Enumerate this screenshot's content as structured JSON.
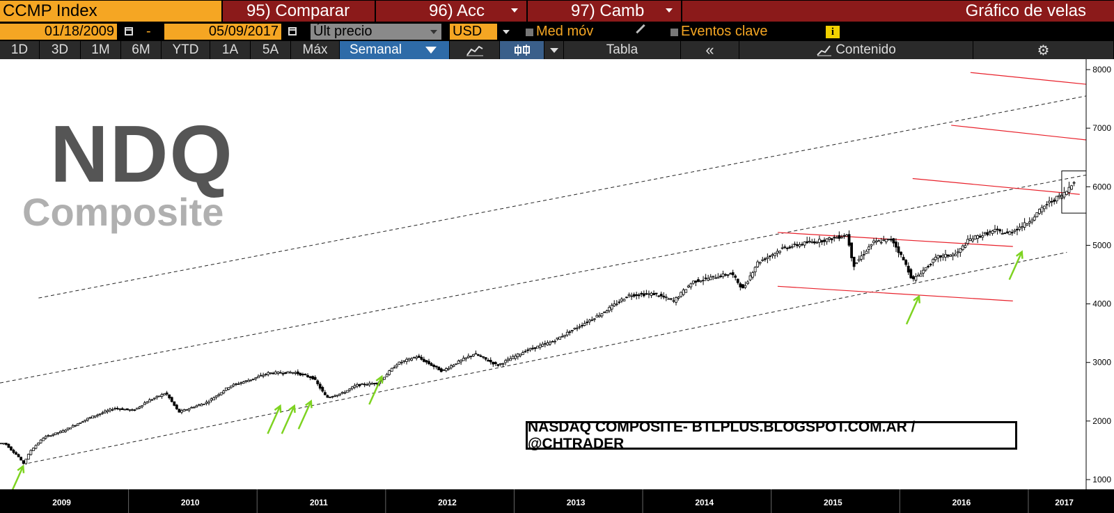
{
  "header": {
    "ticker": "CCMP Index",
    "compare": "95) Comparar",
    "actions": "96) Acc",
    "change": "97) Camb",
    "chart_type_title": "Gráfico de velas"
  },
  "toolbar": {
    "start_date": "01/18/2009",
    "separator": "-",
    "end_date": "05/09/2017",
    "price_field": "Últ precio",
    "currency": "USD",
    "moving_avg": "Med móv",
    "key_events": "Eventos clave",
    "info": "i"
  },
  "range_tabs": [
    "1D",
    "3D",
    "1M",
    "6M",
    "YTD",
    "1A",
    "5A",
    "Máx"
  ],
  "view": {
    "frequency": "Semanal",
    "table": "Tabla",
    "collapse": "«",
    "content": "Contenido"
  },
  "watermark": {
    "line1": "NDQ",
    "line2": "Composite"
  },
  "credit": "NASDAQ COMPOSITE- BTLPLUS.BLOGSPOT.COM.AR / @CHTRADER",
  "colors": {
    "orange": "#f5a623",
    "maroon": "#8b1a1a",
    "blue": "#2e6ba8",
    "trend_red": "#e8202a",
    "arrow_green": "#7ed321"
  },
  "chart_data": {
    "type": "line",
    "subtype": "candlestick-weekly",
    "title": "",
    "xlabel": "",
    "ylabel": "",
    "ylim": [
      1000,
      8200
    ],
    "y_ticks": [
      1000,
      2000,
      3000,
      4000,
      5000,
      6000,
      7000,
      8000
    ],
    "x_ticks": [
      "2009",
      "2010",
      "2011",
      "2012",
      "2013",
      "2014",
      "2015",
      "2016",
      "2017"
    ],
    "x_range": [
      2009.0,
      2017.45
    ],
    "grid": false,
    "series": [
      {
        "x": [
          2009.05,
          2009.1,
          2009.15,
          2009.19,
          2009.25,
          2009.35,
          2009.5,
          2009.7,
          2009.9,
          2010.05,
          2010.15,
          2010.3,
          2010.4,
          2010.5,
          2010.62,
          2010.8,
          2010.95,
          2011.1,
          2011.3,
          2011.45,
          2011.55,
          2011.68,
          2011.78,
          2011.95,
          2012.1,
          2012.25,
          2012.45,
          2012.55,
          2012.7,
          2012.88,
          2013.1,
          2013.3,
          2013.5,
          2013.7,
          2013.9,
          2014.1,
          2014.25,
          2014.4,
          2014.55,
          2014.7,
          2014.79,
          2014.9,
          2015.1,
          2015.3,
          2015.45,
          2015.6,
          2015.65,
          2015.8,
          2015.95,
          2016.05,
          2016.11,
          2016.3,
          2016.45,
          2016.55,
          2016.75,
          2016.85,
          2017.0,
          2017.15,
          2017.3,
          2017.36
        ],
        "y": [
          1620,
          1500,
          1400,
          1268,
          1500,
          1720,
          1830,
          2050,
          2220,
          2180,
          2330,
          2480,
          2150,
          2230,
          2320,
          2600,
          2700,
          2820,
          2830,
          2730,
          2400,
          2480,
          2610,
          2650,
          2980,
          3100,
          2850,
          2980,
          3150,
          2950,
          3200,
          3350,
          3600,
          3850,
          4150,
          4170,
          4050,
          4380,
          4450,
          4520,
          4250,
          4700,
          4950,
          5050,
          5100,
          5180,
          4650,
          5050,
          5100,
          4700,
          4400,
          4800,
          4850,
          5100,
          5250,
          5200,
          5380,
          5700,
          5900,
          6100
        ]
      }
    ],
    "trendlines_dashed": [
      {
        "from": [
          2009.3,
          4100
        ],
        "to": [
          2017.45,
          7550
        ]
      },
      {
        "from": [
          2009.0,
          2650
        ],
        "to": [
          2017.45,
          6200
        ]
      },
      {
        "from": [
          2009.22,
          1280
        ],
        "to": [
          2017.3,
          4880
        ]
      }
    ],
    "resistance_lines_red": [
      {
        "from": [
          2016.55,
          7950
        ],
        "to": [
          2017.45,
          7750
        ]
      },
      {
        "from": [
          2016.4,
          7050
        ],
        "to": [
          2017.45,
          6800
        ]
      },
      {
        "from": [
          2016.1,
          6140
        ],
        "to": [
          2017.4,
          5870
        ]
      },
      {
        "from": [
          2015.05,
          5220
        ],
        "to": [
          2016.88,
          4980
        ]
      },
      {
        "from": [
          2015.05,
          4300
        ],
        "to": [
          2016.88,
          4050
        ]
      }
    ],
    "support_arrows": [
      {
        "x": 2009.18,
        "y": 1300
      },
      {
        "x": 2011.18,
        "y": 2330
      },
      {
        "x": 2011.29,
        "y": 2330
      },
      {
        "x": 2011.42,
        "y": 2410
      },
      {
        "x": 2011.97,
        "y": 2830
      },
      {
        "x": 2016.15,
        "y": 4200
      },
      {
        "x": 2016.95,
        "y": 4960
      }
    ],
    "highlight_box": {
      "x": [
        2017.26,
        2017.48
      ],
      "y": [
        5550,
        6270
      ]
    }
  }
}
